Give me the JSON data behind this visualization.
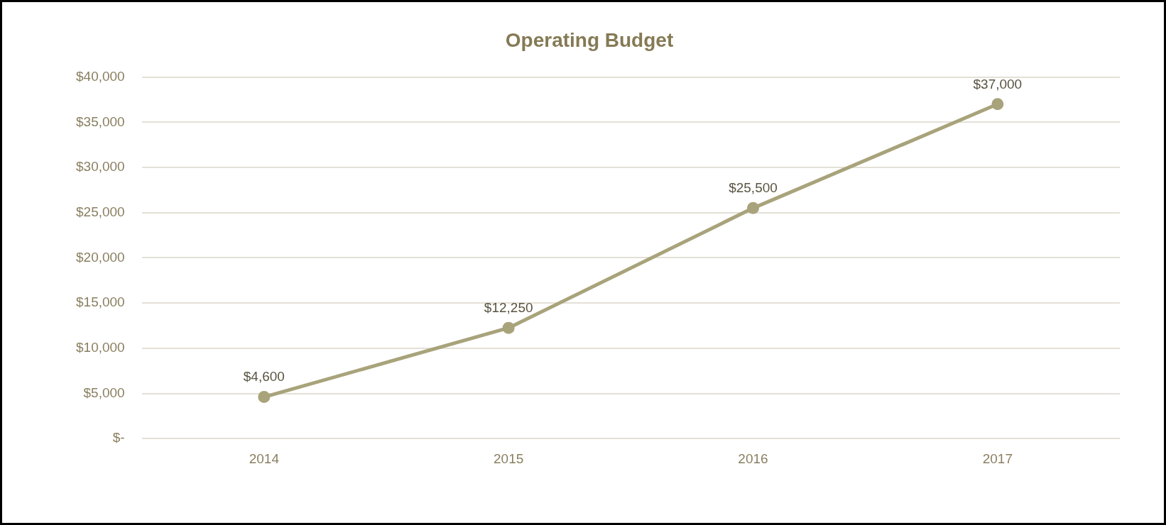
{
  "chart_data": {
    "type": "line",
    "title": "Operating Budget",
    "categories": [
      "2014",
      "2015",
      "2016",
      "2017"
    ],
    "series": [
      {
        "color": "#a8a37a",
        "values": [
          4600,
          12250,
          25500,
          37000
        ],
        "value_labels": [
          "$4,600",
          "$12,250",
          "$25,500",
          "$37,000"
        ]
      }
    ],
    "ylim": [
      0,
      40000
    ],
    "yticks": [
      {
        "value": 0,
        "label": "$-"
      },
      {
        "value": 5000,
        "label": "$5,000"
      },
      {
        "value": 10000,
        "label": "$10,000"
      },
      {
        "value": 15000,
        "label": "$15,000"
      },
      {
        "value": 20000,
        "label": "$20,000"
      },
      {
        "value": 25000,
        "label": "$25,000"
      },
      {
        "value": 30000,
        "label": "$30,000"
      },
      {
        "value": 35000,
        "label": "$35,000"
      },
      {
        "value": 40000,
        "label": "$40,000"
      }
    ],
    "grid": "y",
    "legend": false,
    "marker": "circle",
    "line_style": "solid"
  }
}
